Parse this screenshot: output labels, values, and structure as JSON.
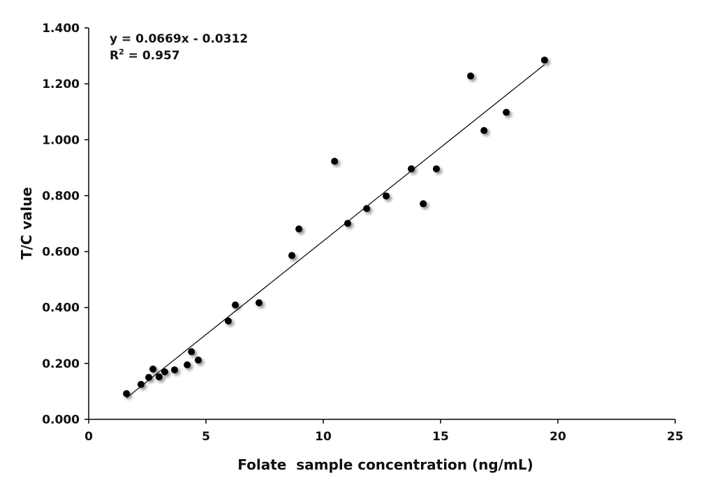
{
  "chart_data": {
    "type": "scatter",
    "title": "",
    "xlabel": "Folate  sample concentration (ng/mL)",
    "ylabel": "T/C value",
    "xlim": [
      0,
      25
    ],
    "ylim": [
      0,
      1.4
    ],
    "xticks": [
      "0",
      "5",
      "10",
      "15",
      "20",
      "25"
    ],
    "yticks": [
      "0.000",
      "0.200",
      "0.400",
      "0.600",
      "0.800",
      "1.000",
      "1.200",
      "1.400"
    ],
    "grid": false,
    "legend": "none",
    "point_color": "#000000",
    "x": [
      1.61,
      2.23,
      2.56,
      2.74,
      3.0,
      3.24,
      3.66,
      4.2,
      4.38,
      4.67,
      5.95,
      6.25,
      7.26,
      8.66,
      8.96,
      10.48,
      11.04,
      11.85,
      12.68,
      13.75,
      14.26,
      14.82,
      16.28,
      16.85,
      17.8,
      19.43
    ],
    "y": [
      0.092,
      0.125,
      0.15,
      0.18,
      0.152,
      0.17,
      0.177,
      0.195,
      0.242,
      0.212,
      0.352,
      0.409,
      0.417,
      0.586,
      0.681,
      0.923,
      0.701,
      0.754,
      0.799,
      0.896,
      0.771,
      0.896,
      1.228,
      1.033,
      1.098,
      1.285
    ],
    "trendline": {
      "type": "linear",
      "slope": 0.0669,
      "intercept": -0.0312,
      "x_range": [
        1.61,
        19.43
      ],
      "equation": "y = 0.0669x - 0.0312",
      "r2_label": "R",
      "r2_sup": "2",
      "r2_value": " = 0.957"
    }
  }
}
